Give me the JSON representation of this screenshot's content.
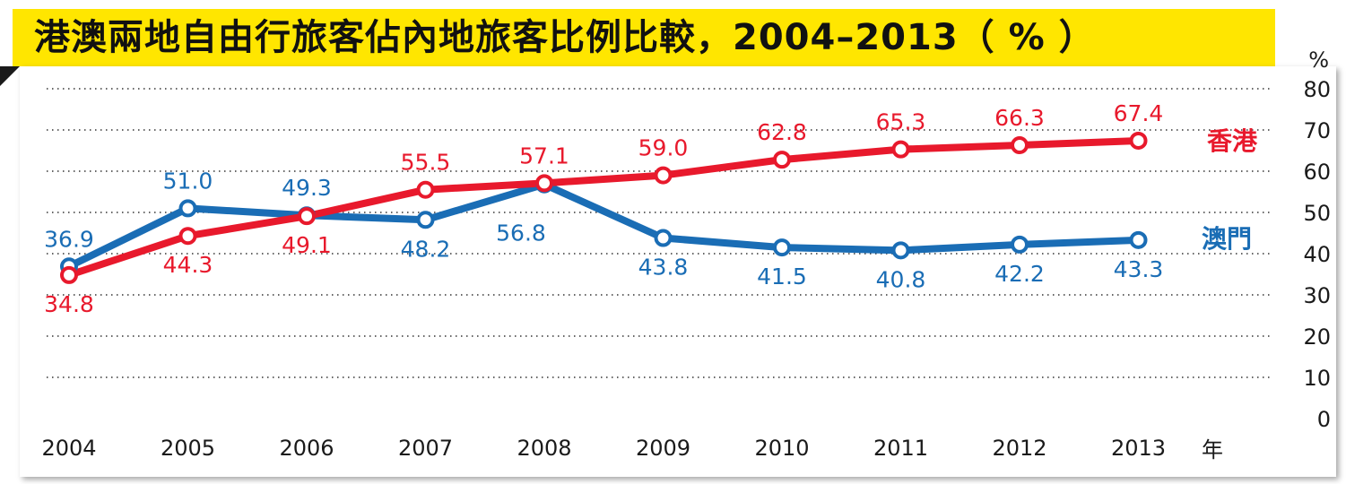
{
  "title": "港澳兩地自由行旅客佔內地旅客比例比較，2004–2013（ % ）",
  "chart_data": {
    "type": "line",
    "title": "港澳兩地自由行旅客佔內地旅客比例比較，2004–2013（ % ）",
    "categories": [
      "2004",
      "2005",
      "2006",
      "2007",
      "2008",
      "2009",
      "2010",
      "2011",
      "2012",
      "2013"
    ],
    "x_unit": "年",
    "y_unit": "%",
    "ylim": [
      0,
      80
    ],
    "yticks": [
      "0",
      "10",
      "20",
      "30",
      "40",
      "50",
      "60",
      "70",
      "80"
    ],
    "grid": "dotted horizontal",
    "series": [
      {
        "name": "香港",
        "color": "#e8192c",
        "values": [
          34.8,
          44.3,
          49.1,
          55.5,
          57.1,
          59.0,
          62.8,
          65.3,
          66.3,
          67.4
        ],
        "labels": [
          "34.8",
          "44.3",
          "49.1",
          "55.5",
          "57.1",
          "59.0",
          "62.8",
          "65.3",
          "66.3",
          "67.4"
        ]
      },
      {
        "name": "澳門",
        "color": "#1a6db5",
        "values": [
          36.9,
          51.0,
          49.3,
          48.2,
          56.8,
          43.8,
          41.5,
          40.8,
          42.2,
          43.3
        ],
        "labels": [
          "36.9",
          "51.0",
          "49.3",
          "48.2",
          "56.8",
          "43.8",
          "41.5",
          "40.8",
          "42.2",
          "43.3"
        ]
      }
    ]
  }
}
